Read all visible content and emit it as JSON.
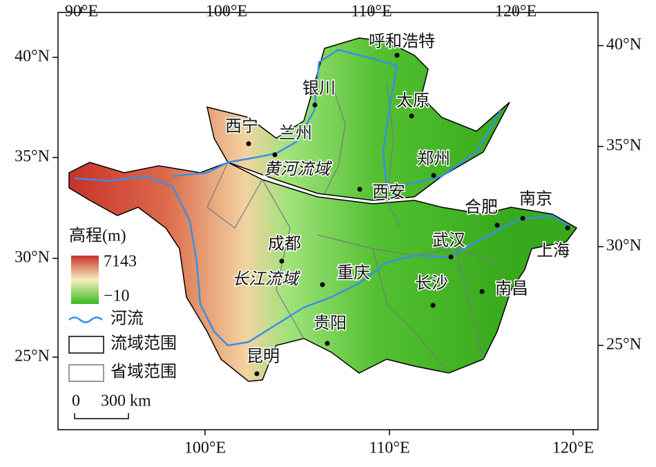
{
  "axes": {
    "top_ticks": [
      "90°E",
      "100°E",
      "110°E",
      "120°E"
    ],
    "bottom_ticks": [
      "100°E",
      "110°E",
      "120°E"
    ],
    "left_ticks": [
      "40°N",
      "35°N",
      "30°N",
      "25°N"
    ],
    "right_ticks": [
      "40°N",
      "35°N",
      "30°N",
      "25°N"
    ]
  },
  "cities": [
    "呼和浩特",
    "银川",
    "太原",
    "西宁",
    "兰州",
    "郑州",
    "西安",
    "合肥",
    "南京",
    "上海",
    "武汉",
    "成都",
    "重庆",
    "长沙",
    "南昌",
    "贵阳",
    "昆明"
  ],
  "basins": [
    "黄河流域",
    "长江流域"
  ],
  "legend": {
    "title": "高程(m)",
    "max": "7143",
    "min": "−10",
    "river": "河流",
    "basin_boundary": "流域范围",
    "province_boundary": "省域范围"
  },
  "scale_bar": {
    "start": "0",
    "label": "300 km"
  }
}
